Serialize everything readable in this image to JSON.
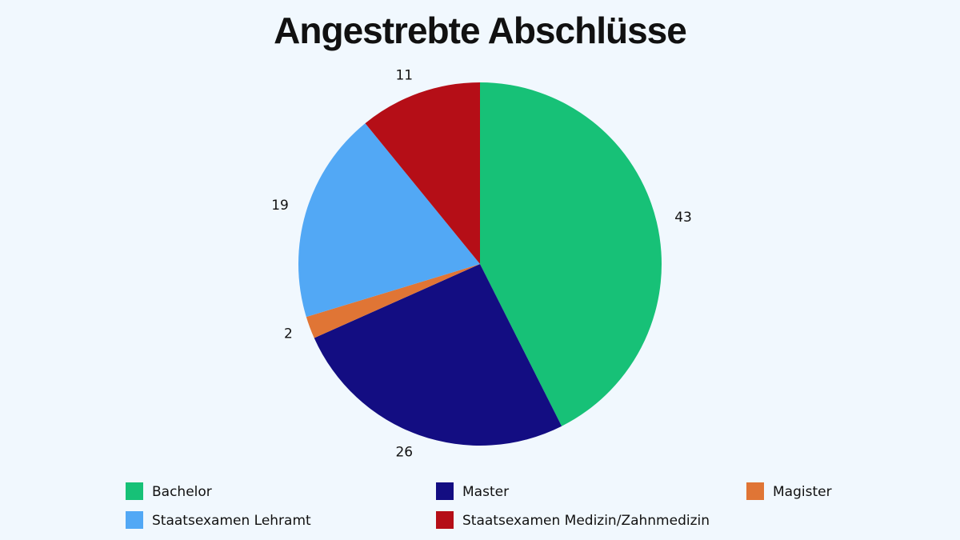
{
  "chart_data": {
    "type": "pie",
    "title": "Angestrebte Abschlüsse",
    "categories": [
      "Bachelor",
      "Master",
      "Magister",
      "Staatsexamen Lehramt",
      "Staatsexamen Medizin/Zahnmedizin"
    ],
    "values": [
      43,
      26,
      2,
      19,
      11
    ],
    "colors": [
      "#17c177",
      "#130d82",
      "#e07535",
      "#52a8f5",
      "#b50e17"
    ]
  }
}
